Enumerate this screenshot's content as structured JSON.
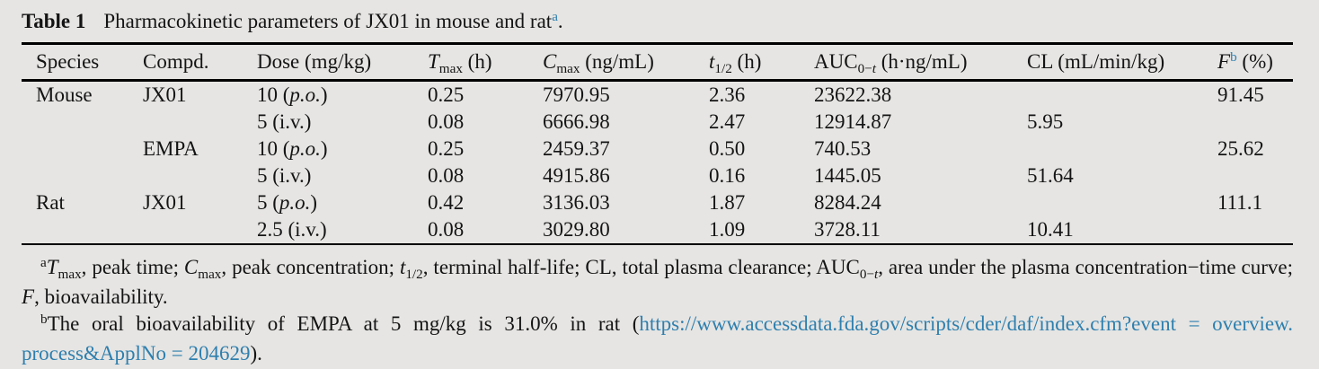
{
  "colors": {
    "background": "#e6e5e3",
    "text": "#141414",
    "accent": "#2e7fae",
    "rule": "#000000"
  },
  "caption": {
    "label": "Table 1",
    "text": "Pharmacokinetic parameters of JX01 in mouse and rat",
    "ref": "a",
    "suffix": "."
  },
  "table": {
    "columns": [
      [
        {
          "t": "Species"
        }
      ],
      [
        {
          "t": "Compd."
        }
      ],
      [
        {
          "t": "Dose (mg/kg)"
        }
      ],
      [
        {
          "t": "T",
          "s": "i"
        },
        {
          "t": "max",
          "s": "sub"
        },
        {
          "t": " (h)"
        }
      ],
      [
        {
          "t": "C",
          "s": "i"
        },
        {
          "t": "max",
          "s": "sub"
        },
        {
          "t": " (ng/mL)"
        }
      ],
      [
        {
          "t": "t",
          "s": "i"
        },
        {
          "t": "1/2",
          "s": "sub"
        },
        {
          "t": " (h)"
        }
      ],
      [
        {
          "t": "AUC"
        },
        {
          "t": "0−",
          "s": "sub"
        },
        {
          "t": "t",
          "s": "subi"
        },
        {
          "t": " (h·ng/mL)"
        }
      ],
      [
        {
          "t": "CL (mL/min/kg)"
        }
      ],
      [
        {
          "t": "F",
          "s": "i"
        },
        {
          "t": "b",
          "s": "supref"
        },
        {
          "t": " (%)"
        }
      ]
    ],
    "rows": [
      [
        [
          {
            "t": "Mouse"
          }
        ],
        [
          {
            "t": "JX01"
          }
        ],
        [
          {
            "t": "10 ("
          },
          {
            "t": "p.o.",
            "s": "i"
          },
          {
            "t": ")"
          }
        ],
        [
          {
            "t": "0.25"
          }
        ],
        [
          {
            "t": "7970.95"
          }
        ],
        [
          {
            "t": "2.36"
          }
        ],
        [
          {
            "t": "23622.38"
          }
        ],
        [],
        [
          {
            "t": "91.45"
          }
        ]
      ],
      [
        [],
        [],
        [
          {
            "t": "5 (i.v.)"
          }
        ],
        [
          {
            "t": "0.08"
          }
        ],
        [
          {
            "t": "6666.98"
          }
        ],
        [
          {
            "t": "2.47"
          }
        ],
        [
          {
            "t": "12914.87"
          }
        ],
        [
          {
            "t": "5.95"
          }
        ],
        []
      ],
      [
        [],
        [
          {
            "t": "EMPA"
          }
        ],
        [
          {
            "t": "10 ("
          },
          {
            "t": "p.o.",
            "s": "i"
          },
          {
            "t": ")"
          }
        ],
        [
          {
            "t": "0.25"
          }
        ],
        [
          {
            "t": "2459.37"
          }
        ],
        [
          {
            "t": "0.50"
          }
        ],
        [
          {
            "t": "740.53"
          }
        ],
        [],
        [
          {
            "t": "25.62"
          }
        ]
      ],
      [
        [],
        [],
        [
          {
            "t": "5 (i.v.)"
          }
        ],
        [
          {
            "t": "0.08"
          }
        ],
        [
          {
            "t": "4915.86"
          }
        ],
        [
          {
            "t": "0.16"
          }
        ],
        [
          {
            "t": "1445.05"
          }
        ],
        [
          {
            "t": "51.64"
          }
        ],
        []
      ],
      [
        [
          {
            "t": "Rat"
          }
        ],
        [
          {
            "t": "JX01"
          }
        ],
        [
          {
            "t": "5 ("
          },
          {
            "t": "p.o.",
            "s": "i"
          },
          {
            "t": ")"
          }
        ],
        [
          {
            "t": "0.42"
          }
        ],
        [
          {
            "t": "3136.03"
          }
        ],
        [
          {
            "t": "1.87"
          }
        ],
        [
          {
            "t": "8284.24"
          }
        ],
        [],
        [
          {
            "t": "111.1"
          }
        ]
      ],
      [
        [],
        [],
        [
          {
            "t": "2.5 (i.v.)"
          }
        ],
        [
          {
            "t": "0.08"
          }
        ],
        [
          {
            "t": "3029.80"
          }
        ],
        [
          {
            "t": "1.09"
          }
        ],
        [
          {
            "t": "3728.11"
          }
        ],
        [
          {
            "t": "10.41"
          }
        ],
        []
      ]
    ]
  },
  "footnotes": [
    {
      "segments": [
        {
          "t": "a",
          "s": "sup"
        },
        {
          "t": "T",
          "s": "i"
        },
        {
          "t": "max",
          "s": "sub"
        },
        {
          "t": ", peak time; "
        },
        {
          "t": "C",
          "s": "i"
        },
        {
          "t": "max",
          "s": "sub"
        },
        {
          "t": ", peak concentration; "
        },
        {
          "t": "t",
          "s": "i"
        },
        {
          "t": "1/2",
          "s": "sub"
        },
        {
          "t": ", terminal half-life; CL, total plasma clearance; AUC"
        },
        {
          "t": "0−",
          "s": "sub"
        },
        {
          "t": "t",
          "s": "subi"
        },
        {
          "t": ", area under the plasma concentration−time curve; "
        },
        {
          "t": "F",
          "s": "i"
        },
        {
          "t": ", bioavailability."
        }
      ]
    },
    {
      "segments": [
        {
          "t": "b",
          "s": "sup"
        },
        {
          "t": "The oral bioavailability of EMPA at 5 mg/kg is 31.0% in rat ("
        },
        {
          "t": "https://www.accessdata.fda.gov/scripts/cder/daf/index.cfm?event = overview.",
          "s": "link"
        },
        {
          "t": "process&ApplNo = 204629",
          "s": "link",
          "br": true
        },
        {
          "t": ")."
        }
      ]
    }
  ]
}
